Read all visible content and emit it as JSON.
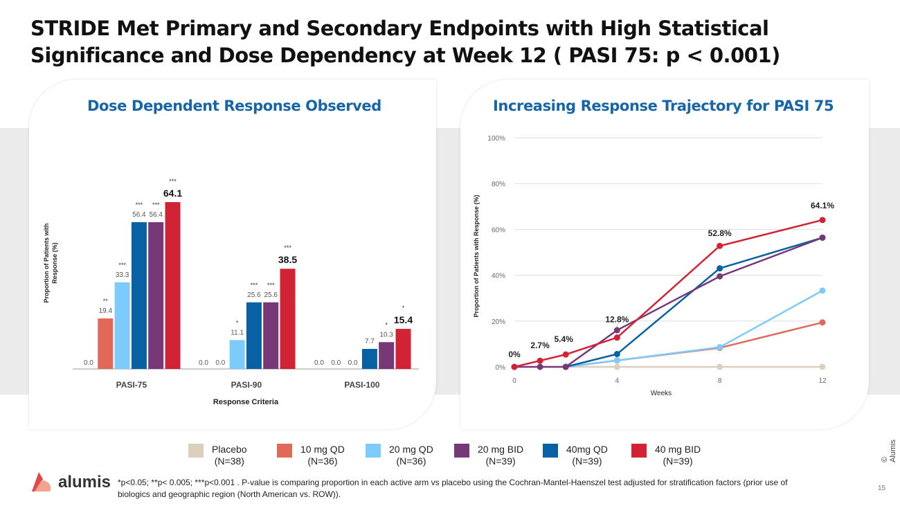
{
  "title": "STRIDE Met Primary and Secondary Endpoints with High Statistical Significance and Dose Dependency at Week 12 ( PASI 75: p < 0.001)",
  "colors": {
    "Placebo": "#dccfbd",
    "10 mg QD": "#e2685a",
    "20 mg QD": "#7ccbfa",
    "20 mg BID": "#763877",
    "40mg QD": "#0761a3",
    "40 mg BID": "#d22334",
    "title_blue": "#1565a8"
  },
  "legend": [
    {
      "label": "Placebo",
      "n": "(N=38)"
    },
    {
      "label": "10 mg QD",
      "n": "(N=36)"
    },
    {
      "label": "20 mg QD",
      "n": "(N=36)"
    },
    {
      "label": "20 mg BID",
      "n": "(N=39)"
    },
    {
      "label": "40mg QD",
      "n": "(N=39)"
    },
    {
      "label": "40 mg BID",
      "n": "(N=39)"
    }
  ],
  "chart_data": [
    {
      "type": "bar",
      "title": "Dose Dependent Response Observed",
      "xlabel": "Response Criteria",
      "ylabel": "Proportion of Patients with Response (%)",
      "categories": [
        "PASI-75",
        "PASI-90",
        "PASI-100"
      ],
      "ylim": [
        0,
        70
      ],
      "grid": false,
      "series": [
        {
          "name": "Placebo",
          "values": [
            0.0,
            0.0,
            0.0
          ],
          "labels": [
            "0.0",
            "0.0",
            "0.0"
          ],
          "sig": [
            "",
            "",
            ""
          ]
        },
        {
          "name": "10 mg QD",
          "values": [
            19.4,
            0.0,
            0.0
          ],
          "labels": [
            "19.4",
            "0.0",
            "0.0"
          ],
          "sig": [
            "**",
            "",
            ""
          ]
        },
        {
          "name": "20 mg QD",
          "values": [
            33.3,
            11.1,
            0.0
          ],
          "labels": [
            "33.3",
            "11.1",
            "0.0"
          ],
          "sig": [
            "***",
            "*",
            ""
          ]
        },
        {
          "name": "40mg QD",
          "values": [
            56.4,
            25.6,
            7.7
          ],
          "labels": [
            "56.4",
            "25.6",
            "7.7"
          ],
          "sig": [
            "***",
            "***",
            ""
          ]
        },
        {
          "name": "20 mg BID",
          "values": [
            56.4,
            25.6,
            10.3
          ],
          "labels": [
            "56.4",
            "25.6",
            "10.3"
          ],
          "sig": [
            "***",
            "***",
            "*"
          ]
        },
        {
          "name": "40 mg BID",
          "values": [
            64.1,
            38.5,
            15.4
          ],
          "labels": [
            "64.1",
            "38.5",
            "15.4"
          ],
          "sig": [
            "***",
            "***",
            "*"
          ]
        }
      ]
    },
    {
      "type": "line",
      "title": "Increasing Response Trajectory for PASI 75",
      "xlabel": "Weeks",
      "ylabel": "Proportion of Patients with Response (%)",
      "xticks": [
        "0",
        "4",
        "8",
        "12"
      ],
      "yticks": [
        "0%",
        "20%",
        "40%",
        "60%",
        "80%",
        "100%"
      ],
      "xlim": [
        0,
        12
      ],
      "ylim": [
        0,
        100
      ],
      "grid": true,
      "series": [
        {
          "name": "Placebo",
          "x": [
            2,
            4,
            8,
            12
          ],
          "y": [
            0,
            0,
            0,
            0
          ]
        },
        {
          "name": "10 mg QD",
          "x": [
            2,
            4,
            8,
            12
          ],
          "y": [
            0,
            2.8,
            8.3,
            19.4
          ]
        },
        {
          "name": "20 mg QD",
          "x": [
            2,
            4,
            8,
            12
          ],
          "y": [
            0,
            2.8,
            8.6,
            33.3
          ]
        },
        {
          "name": "40mg QD",
          "x": [
            2,
            4,
            8,
            12
          ],
          "y": [
            0,
            5.6,
            43.0,
            56.4
          ]
        },
        {
          "name": "20 mg BID",
          "x": [
            0,
            1,
            2,
            4,
            8,
            12
          ],
          "y": [
            0,
            0,
            0,
            16.0,
            39.5,
            56.4
          ]
        },
        {
          "name": "40 mg BID",
          "x": [
            0,
            1,
            2,
            4,
            8,
            12
          ],
          "y": [
            0,
            2.7,
            5.4,
            12.8,
            52.8,
            64.1
          ]
        }
      ],
      "annotations": [
        {
          "x": 0,
          "y": 0,
          "text": "0%"
        },
        {
          "x": 1,
          "y": 2.7,
          "text": "2.7%"
        },
        {
          "x": 2,
          "y": 5.4,
          "text": "5.4%"
        },
        {
          "x": 4,
          "y": 12.8,
          "text": "12.8%"
        },
        {
          "x": 8,
          "y": 52.8,
          "text": "52.8%"
        },
        {
          "x": 12,
          "y": 64.1,
          "text": "64.1%"
        }
      ]
    }
  ],
  "footnote": "*p<0.05; **p< 0.005; ***p<0.001 . P-value is comparing proportion in each active arm vs placebo using the Cochran-Mantel-Haenszel test adjusted for stratification factors (prior use of biologics and geographic region (North American vs. ROW)).",
  "logo_text": "alumis",
  "copyright": "© Alumis",
  "page_number": "15"
}
